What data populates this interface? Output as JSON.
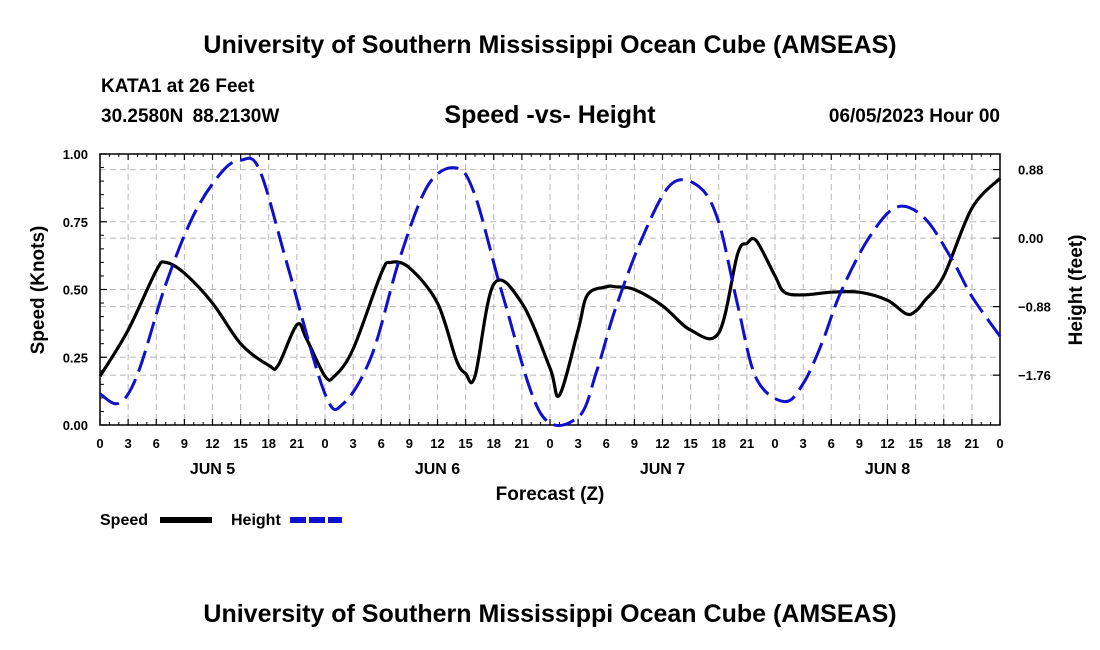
{
  "header": {
    "title": "University of Southern Mississippi Ocean Cube (AMSEAS)",
    "station": "KATA1 at 26 Feet",
    "coords": "30.2580N  88.2130W",
    "date": "06/05/2023 Hour 00",
    "footer_title": "University of Southern Mississippi Ocean Cube (AMSEAS)"
  },
  "colors": {
    "speed": "#000000",
    "height": "#1010cc",
    "grid": "#b8b8b8"
  },
  "chart_data": {
    "type": "line",
    "title": "Speed -vs- Height",
    "xlabel": "Forecast (Z)",
    "ylabel_left": "Speed (Knots)",
    "ylabel_right": "Height (feet)",
    "x_range": [
      0,
      96
    ],
    "x_ticks": [
      0,
      3,
      6,
      9,
      12,
      15,
      18,
      21,
      24,
      27,
      30,
      33,
      36,
      39,
      42,
      45,
      48,
      51,
      54,
      57,
      60,
      63,
      66,
      69,
      72,
      75,
      78,
      81,
      84,
      87,
      90,
      93,
      96
    ],
    "x_tick_labels": [
      "0",
      "3",
      "6",
      "9",
      "12",
      "15",
      "18",
      "21",
      "0",
      "3",
      "6",
      "9",
      "12",
      "15",
      "18",
      "21",
      "0",
      "3",
      "6",
      "9",
      "12",
      "15",
      "18",
      "21",
      "0",
      "3",
      "6",
      "9",
      "12",
      "15",
      "18",
      "21",
      "0"
    ],
    "day_labels": [
      {
        "label": "JUN 5",
        "hour": 12
      },
      {
        "label": "JUN 6",
        "hour": 36
      },
      {
        "label": "JUN 7",
        "hour": 60
      },
      {
        "label": "JUN 8",
        "hour": 84
      }
    ],
    "y_left": {
      "range": [
        0,
        1
      ],
      "ticks": [
        0,
        0.25,
        0.5,
        0.75,
        1.0
      ],
      "tick_labels": [
        "0.00",
        "0.25",
        "0.50",
        "0.75",
        "1.00"
      ]
    },
    "y_right": {
      "range": [
        -2.4,
        1.08
      ],
      "ticks": [
        0.88,
        0.0,
        -0.88,
        -1.76
      ],
      "tick_labels": [
        "0.88",
        "0.00",
        "−0.88",
        "−1.76"
      ]
    },
    "legend": [
      {
        "name": "Speed",
        "style": "solid"
      },
      {
        "name": "Height",
        "style": "dashed"
      }
    ],
    "series": [
      {
        "name": "Speed",
        "axis": "left",
        "style": "solid",
        "x": [
          0,
          3,
          6,
          7,
          9,
          12,
          15,
          18,
          19,
          21,
          22,
          24,
          25,
          27,
          30,
          31,
          33,
          36,
          38,
          39,
          40,
          42,
          45,
          48,
          49,
          51,
          52,
          54,
          55,
          57,
          60,
          63,
          66,
          68,
          69,
          70,
          72,
          73,
          75,
          78,
          81,
          84,
          86,
          87,
          88,
          90,
          93,
          96
        ],
        "values": [
          0.18,
          0.35,
          0.57,
          0.6,
          0.56,
          0.45,
          0.3,
          0.22,
          0.22,
          0.37,
          0.32,
          0.18,
          0.18,
          0.28,
          0.56,
          0.6,
          0.58,
          0.45,
          0.24,
          0.19,
          0.18,
          0.52,
          0.45,
          0.21,
          0.11,
          0.35,
          0.48,
          0.51,
          0.51,
          0.5,
          0.44,
          0.35,
          0.34,
          0.63,
          0.67,
          0.68,
          0.55,
          0.49,
          0.48,
          0.49,
          0.49,
          0.46,
          0.41,
          0.42,
          0.46,
          0.55,
          0.8,
          0.91
        ]
      },
      {
        "name": "Height",
        "axis": "right",
        "style": "dashed",
        "x": [
          0,
          2,
          4,
          7,
          10,
          13,
          15,
          17,
          20,
          24,
          26,
          29,
          32,
          35,
          38,
          40,
          43,
          47,
          51,
          53,
          55,
          58,
          61,
          64,
          66,
          68,
          70,
          73,
          75,
          77,
          79,
          82,
          85,
          88,
          91,
          93,
          96
        ],
        "values": [
          -2.0,
          -2.12,
          -1.75,
          -0.6,
          0.3,
          0.85,
          1.0,
          0.88,
          -0.35,
          -2.0,
          -2.12,
          -1.5,
          -0.25,
          0.68,
          0.9,
          0.55,
          -0.75,
          -2.25,
          -2.3,
          -1.7,
          -0.9,
          0.05,
          0.7,
          0.65,
          0.2,
          -0.85,
          -1.8,
          -2.1,
          -1.87,
          -1.35,
          -0.7,
          0.0,
          0.4,
          0.25,
          -0.3,
          -0.75,
          -1.26
        ]
      }
    ]
  }
}
